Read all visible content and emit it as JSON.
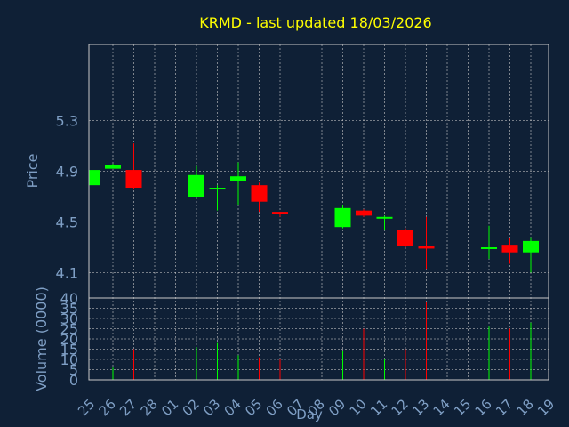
{
  "chart_data": [
    {
      "type": "candlestick",
      "title": "KRMD - last updated 18/03/2026",
      "ylabel": "Price",
      "ylim": [
        3.9,
        5.9
      ],
      "yticks": [
        "5.3",
        "4.9",
        "4.5",
        "4.1"
      ],
      "x_categories": [
        "25",
        "26",
        "27",
        "28",
        "01",
        "02",
        "03",
        "04",
        "05",
        "06",
        "07",
        "08",
        "09",
        "10",
        "11",
        "12",
        "13",
        "14",
        "15",
        "16",
        "17",
        "18",
        "19"
      ],
      "candles": [
        {
          "x": "25",
          "open": 4.79,
          "close": 4.91,
          "high": 4.92,
          "low": 4.78
        },
        {
          "x": "26",
          "open": 4.92,
          "close": 4.95,
          "high": 4.96,
          "low": 4.92
        },
        {
          "x": "27",
          "open": 4.91,
          "close": 4.77,
          "high": 5.12,
          "low": 4.76
        },
        {
          "x": "02",
          "open": 4.7,
          "close": 4.87,
          "high": 4.94,
          "low": 4.69
        },
        {
          "x": "03",
          "open": 4.76,
          "close": 4.77,
          "high": 4.79,
          "low": 4.59
        },
        {
          "x": "04",
          "open": 4.82,
          "close": 4.86,
          "high": 4.97,
          "low": 4.63
        },
        {
          "x": "05",
          "open": 4.79,
          "close": 4.66,
          "high": 4.81,
          "low": 4.58
        },
        {
          "x": "06",
          "open": 4.58,
          "close": 4.56,
          "high": 4.58,
          "low": 4.54
        },
        {
          "x": "09",
          "open": 4.46,
          "close": 4.61,
          "high": 4.63,
          "low": 4.45
        },
        {
          "x": "10",
          "open": 4.59,
          "close": 4.55,
          "high": 4.6,
          "low": 4.54
        },
        {
          "x": "11",
          "open": 4.53,
          "close": 4.54,
          "high": 4.55,
          "low": 4.44
        },
        {
          "x": "12",
          "open": 4.44,
          "close": 4.31,
          "high": 4.45,
          "low": 4.3
        },
        {
          "x": "13",
          "open": 4.31,
          "close": 4.29,
          "high": 4.54,
          "low": 4.13
        },
        {
          "x": "16",
          "open": 4.29,
          "close": 4.3,
          "high": 4.47,
          "low": 4.21
        },
        {
          "x": "17",
          "open": 4.32,
          "close": 4.26,
          "high": 4.37,
          "low": 4.17
        },
        {
          "x": "18",
          "open": 4.26,
          "close": 4.35,
          "high": 4.38,
          "low": 4.1
        }
      ],
      "colors": {
        "up": "#00ff00",
        "down": "#ff0000",
        "background": "#0f2036",
        "text": "#7f9fc5",
        "title": "#ffff00",
        "grid": "#c8c8c8"
      },
      "grid": true
    },
    {
      "type": "bar",
      "ylabel": "Volume (0000)",
      "ylim": [
        0,
        40
      ],
      "yticks": [
        "40",
        "35",
        "30",
        "25",
        "20",
        "15",
        "10",
        "5",
        "0"
      ],
      "xlabel": "Day",
      "x_categories": [
        "25",
        "26",
        "27",
        "28",
        "01",
        "02",
        "03",
        "04",
        "05",
        "06",
        "07",
        "08",
        "09",
        "10",
        "11",
        "12",
        "13",
        "14",
        "15",
        "16",
        "17",
        "18",
        "19"
      ],
      "volumes": [
        {
          "x": "26",
          "value": 6,
          "dir": "up"
        },
        {
          "x": "27",
          "value": 15,
          "dir": "down"
        },
        {
          "x": "02",
          "value": 16,
          "dir": "up"
        },
        {
          "x": "03",
          "value": 18,
          "dir": "up"
        },
        {
          "x": "04",
          "value": 12,
          "dir": "up"
        },
        {
          "x": "05",
          "value": 11,
          "dir": "down"
        },
        {
          "x": "06",
          "value": 10,
          "dir": "down"
        },
        {
          "x": "09",
          "value": 14,
          "dir": "up"
        },
        {
          "x": "10",
          "value": 25,
          "dir": "down"
        },
        {
          "x": "11",
          "value": 10,
          "dir": "up"
        },
        {
          "x": "12",
          "value": 15,
          "dir": "down"
        },
        {
          "x": "13",
          "value": 38,
          "dir": "down"
        },
        {
          "x": "16",
          "value": 26,
          "dir": "up"
        },
        {
          "x": "17",
          "value": 25,
          "dir": "down"
        },
        {
          "x": "18",
          "value": 28,
          "dir": "up"
        }
      ],
      "grid": true
    }
  ]
}
